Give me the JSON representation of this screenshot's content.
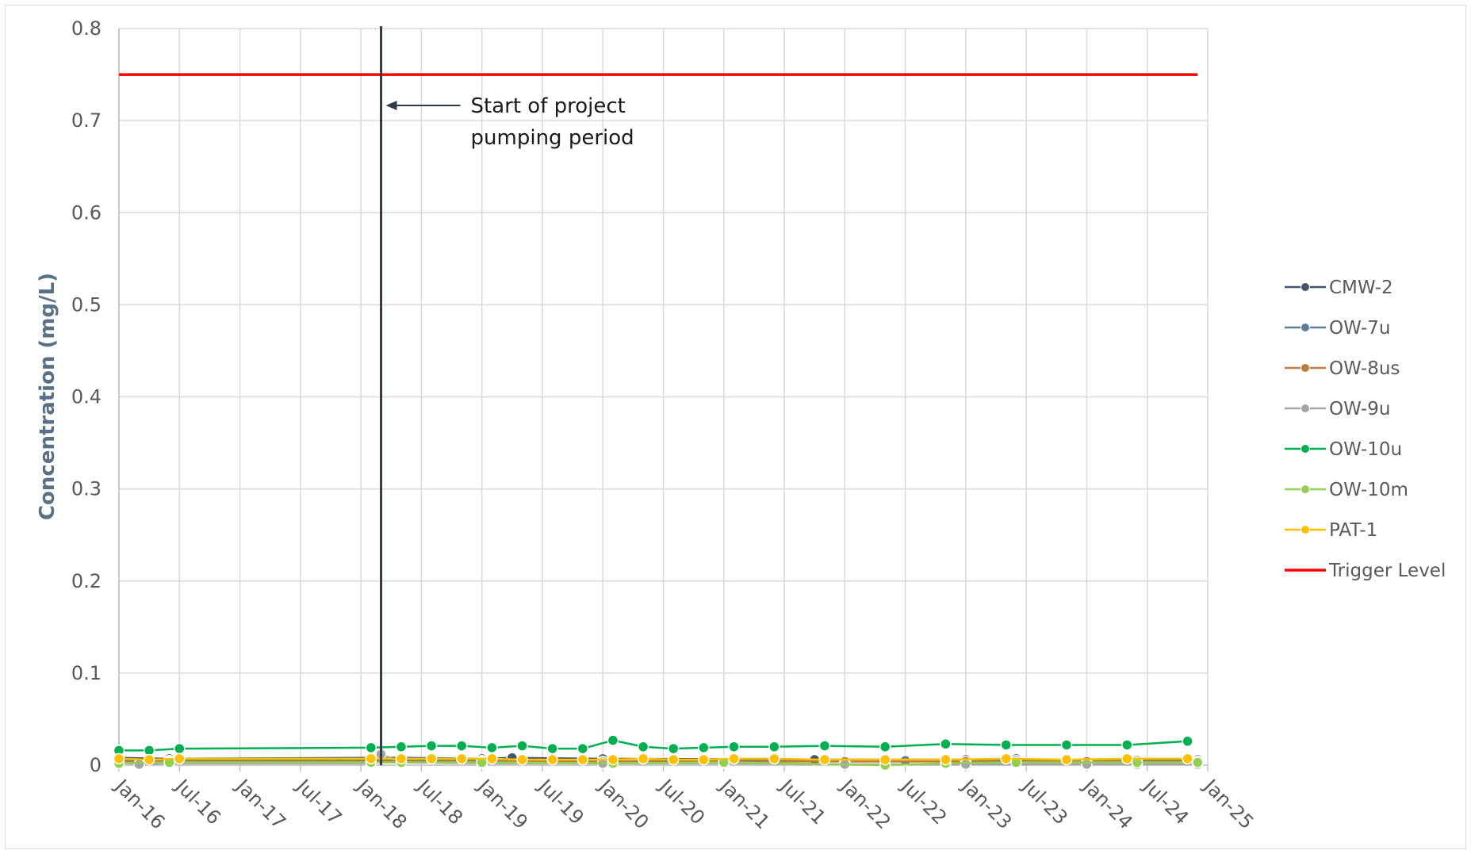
{
  "chart_data": {
    "type": "line",
    "title": "",
    "xlabel": "",
    "ylabel": "Concentration (mg/L)",
    "ylim": [
      0,
      0.8
    ],
    "y_ticks": [
      "0",
      "0.1",
      "0.2",
      "0.3",
      "0.4",
      "0.5",
      "0.6",
      "0.7",
      "0.8"
    ],
    "x_ticks": [
      "Jan-16",
      "Jul-16",
      "Jan-17",
      "Jul-17",
      "Jan-18",
      "Jul-18",
      "Jan-19",
      "Jul-19",
      "Jan-20",
      "Jul-20",
      "Jan-21",
      "Jul-21",
      "Jan-22",
      "Jul-22",
      "Jan-23",
      "Jul-23",
      "Jan-24",
      "Jul-24",
      "Jan-25"
    ],
    "xlim": [
      "2016-01",
      "2025-01"
    ],
    "grid": true,
    "legend_position": "right",
    "annotation": {
      "lines": [
        "Start of project",
        "pumping period"
      ],
      "marker_date": "2018-03"
    },
    "series": [
      {
        "name": "CMW-2",
        "color": "#44546a",
        "x": [
          "2016-01",
          "2016-06",
          "2018-02",
          "2018-05",
          "2019-01",
          "2019-04",
          "2020-01",
          "2021-10",
          "2022-07",
          "2023-01",
          "2023-06"
        ],
        "values": [
          0.008,
          0.007,
          0.008,
          0.008,
          0.007,
          0.008,
          0.007,
          0.006,
          0.006,
          0.006,
          0.007
        ]
      },
      {
        "name": "OW-7u",
        "color": "#5b7f95",
        "x": [
          "2016-01",
          "2016-06",
          "2018-02",
          "2018-05",
          "2019-01",
          "2020-01",
          "2021-01",
          "2022-07",
          "2023-06",
          "2024-06",
          "2024-12"
        ],
        "values": [
          0.005,
          0.005,
          0.005,
          0.005,
          0.005,
          0.004,
          0.005,
          0.005,
          0.005,
          0.005,
          0.006
        ]
      },
      {
        "name": "OW-8us",
        "color": "#c07a39",
        "x": [
          "2016-01",
          "2016-06",
          "2018-02",
          "2018-05",
          "2019-01",
          "2020-01",
          "2021-01",
          "2022-01",
          "2023-01",
          "2024-01",
          "2024-12"
        ],
        "values": [
          0.004,
          0.004,
          0.004,
          0.004,
          0.004,
          0.004,
          0.004,
          0.004,
          0.004,
          0.004,
          0.004
        ]
      },
      {
        "name": "OW-9u",
        "color": "#a5a5a5",
        "x": [
          "2016-01",
          "2016-03",
          "2016-06",
          "2018-02",
          "2018-03",
          "2018-05",
          "2019-01",
          "2020-01",
          "2021-01",
          "2022-01",
          "2023-01",
          "2024-01",
          "2024-06",
          "2024-12"
        ],
        "values": [
          0.003,
          0.001,
          0.002,
          0.002,
          0.012,
          0.003,
          0.002,
          0.002,
          0.002,
          0.001,
          0.001,
          0.001,
          0.001,
          0.001
        ]
      },
      {
        "name": "OW-10u",
        "color": "#00b050",
        "x": [
          "2016-01",
          "2016-04",
          "2016-07",
          "2018-02",
          "2018-05",
          "2018-08",
          "2018-11",
          "2019-02",
          "2019-05",
          "2019-08",
          "2019-11",
          "2020-02",
          "2020-05",
          "2020-08",
          "2020-11",
          "2021-02",
          "2021-06",
          "2021-11",
          "2022-05",
          "2022-11",
          "2023-05",
          "2023-11",
          "2024-05",
          "2024-11"
        ],
        "values": [
          0.016,
          0.016,
          0.018,
          0.019,
          0.02,
          0.021,
          0.021,
          0.019,
          0.021,
          0.018,
          0.018,
          0.027,
          0.02,
          0.018,
          0.019,
          0.02,
          0.02,
          0.021,
          0.02,
          0.023,
          0.022,
          0.022,
          0.022,
          0.026
        ]
      },
      {
        "name": "OW-10m",
        "color": "#92d050",
        "x": [
          "2016-01",
          "2016-06",
          "2018-02",
          "2018-05",
          "2019-01",
          "2020-02",
          "2021-01",
          "2022-05",
          "2022-11",
          "2023-06",
          "2024-06",
          "2024-12"
        ],
        "values": [
          0.002,
          0.003,
          0.003,
          0.003,
          0.003,
          0.002,
          0.003,
          0.0,
          0.002,
          0.003,
          0.003,
          0.003
        ]
      },
      {
        "name": "PAT-1",
        "color": "#ffc000",
        "x": [
          "2016-01",
          "2016-04",
          "2016-07",
          "2018-02",
          "2018-05",
          "2018-08",
          "2018-11",
          "2019-02",
          "2019-05",
          "2019-08",
          "2019-11",
          "2020-02",
          "2020-05",
          "2020-08",
          "2020-11",
          "2021-02",
          "2021-06",
          "2021-11",
          "2022-05",
          "2022-11",
          "2023-05",
          "2023-11",
          "2024-05",
          "2024-11"
        ],
        "values": [
          0.007,
          0.006,
          0.007,
          0.007,
          0.007,
          0.007,
          0.007,
          0.007,
          0.006,
          0.006,
          0.006,
          0.006,
          0.007,
          0.006,
          0.006,
          0.007,
          0.007,
          0.006,
          0.006,
          0.006,
          0.007,
          0.006,
          0.007,
          0.007
        ]
      },
      {
        "name": "Trigger Level",
        "color": "#ff0000",
        "markers": false,
        "x": [
          "2016-01",
          "2024-12"
        ],
        "values": [
          0.75,
          0.75
        ]
      }
    ]
  }
}
